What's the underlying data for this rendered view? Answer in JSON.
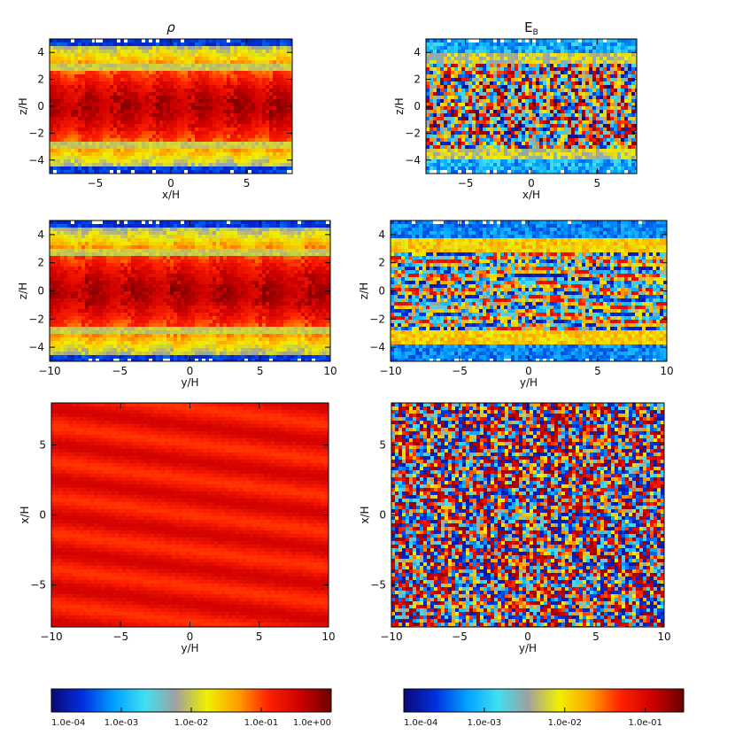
{
  "chart_data": [
    {
      "type": "heatmap",
      "panel": "top-left",
      "title": "ρ",
      "xlabel": "x/H",
      "ylabel": "z/H",
      "xlim": [
        -8,
        8
      ],
      "ylim": [
        -5,
        5
      ],
      "xticks": [
        -5,
        0,
        5
      ],
      "yticks": [
        -4,
        -2,
        0,
        2,
        4
      ],
      "field": "density",
      "pattern": "vertical-stratified"
    },
    {
      "type": "heatmap",
      "panel": "top-right",
      "title": "E",
      "title_sub": "B",
      "xlabel": "x/H",
      "ylabel": "z/H",
      "xlim": [
        -8,
        8
      ],
      "ylim": [
        -5,
        5
      ],
      "xticks": [
        -5,
        0,
        5
      ],
      "yticks": [
        -4,
        -2,
        0,
        2,
        4
      ],
      "field": "magnetic-energy",
      "pattern": "turbulent-midplane"
    },
    {
      "type": "heatmap",
      "panel": "middle-left",
      "xlabel": "y/H",
      "ylabel": "z/H",
      "xlim": [
        -10,
        10
      ],
      "ylim": [
        -5,
        5
      ],
      "xticks": [
        -10,
        -5,
        0,
        5,
        10
      ],
      "yticks": [
        -4,
        -2,
        0,
        2,
        4
      ],
      "field": "density",
      "pattern": "vertical-stratified"
    },
    {
      "type": "heatmap",
      "panel": "middle-right",
      "xlabel": "y/H",
      "ylabel": "z/H",
      "xlim": [
        -10,
        10
      ],
      "ylim": [
        -5,
        5
      ],
      "xticks": [
        -10,
        -5,
        0,
        5,
        10
      ],
      "yticks": [
        -4,
        -2,
        0,
        2,
        4
      ],
      "field": "magnetic-energy",
      "pattern": "streaky-midplane"
    },
    {
      "type": "heatmap",
      "panel": "bottom-left",
      "xlabel": "y/H",
      "ylabel": "x/H",
      "xlim": [
        -10,
        10
      ],
      "ylim": [
        -8,
        8
      ],
      "xticks": [
        -10,
        -5,
        0,
        5,
        10
      ],
      "yticks": [
        -5,
        0,
        5
      ],
      "field": "density",
      "pattern": "uniform-high-streaks"
    },
    {
      "type": "heatmap",
      "panel": "bottom-right",
      "xlabel": "y/H",
      "ylabel": "x/H",
      "xlim": [
        -10,
        10
      ],
      "ylim": [
        -8,
        8
      ],
      "xticks": [
        -10,
        -5,
        0,
        5,
        10
      ],
      "yticks": [
        -5,
        0,
        5
      ],
      "field": "magnetic-energy",
      "pattern": "sheared-streaks"
    }
  ],
  "colorbars": [
    {
      "scale": "log",
      "range": [
        0.0001,
        1
      ],
      "ticks": [
        0.0001,
        0.001,
        0.01,
        0.1,
        1
      ],
      "tick_labels": [
        "1.0e-04",
        "1.0e-03",
        "1.0e-02",
        "1.0e-01",
        "1.0e+00"
      ]
    },
    {
      "scale": "log",
      "range": [
        0.0001,
        0.3
      ],
      "ticks": [
        0.0001,
        0.001,
        0.01,
        0.1
      ],
      "tick_labels": [
        "1.0e-04",
        "1.0e-03",
        "1.0e-02",
        "1.0e-01"
      ]
    }
  ],
  "colormap": [
    "#0a0a7a",
    "#0030e0",
    "#00a0ff",
    "#40e0f0",
    "#a0a0a0",
    "#f0f000",
    "#ffa000",
    "#ff2000",
    "#d00000",
    "#700000"
  ]
}
